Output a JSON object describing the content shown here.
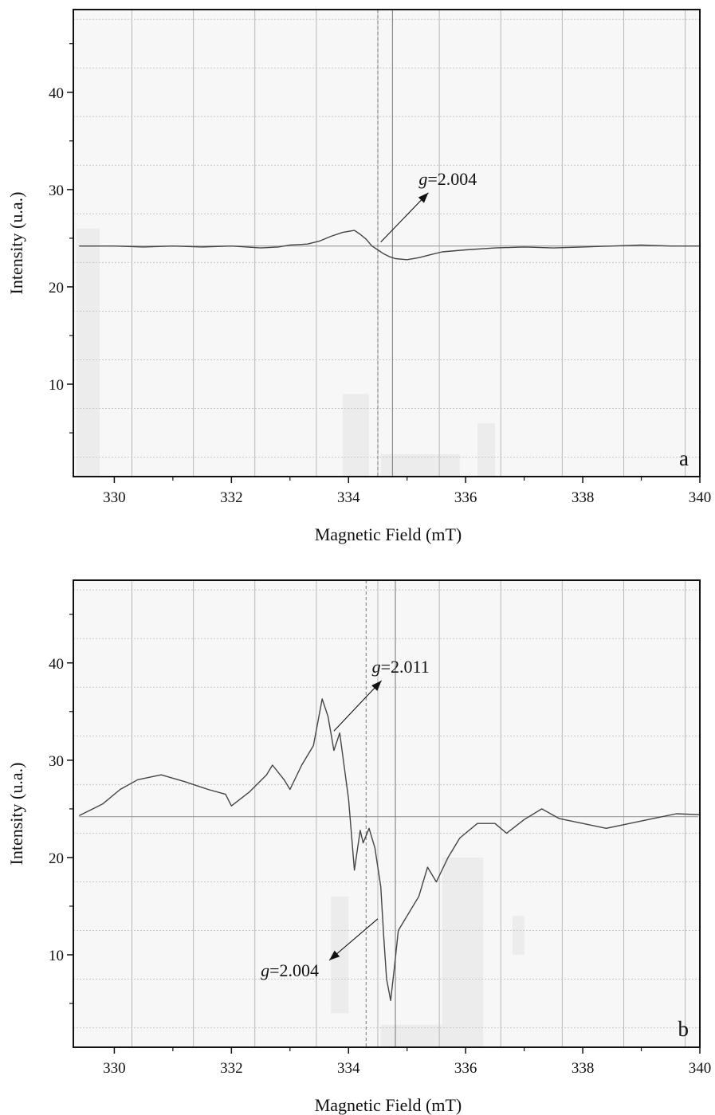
{
  "colors": {
    "plot_background": "#f7f7f7",
    "scan_speckle": "#e8e8e8",
    "grid_major": "#b8b8b8",
    "grid_minor": "#c8c8c8",
    "trace": "#444444",
    "baseline": "#9a9a9a",
    "marker_line": "#777777",
    "axis": "#111111"
  },
  "chart_data": [
    {
      "id": "a",
      "type": "line",
      "panel_label": "a",
      "xlabel": "Magnetic Field (mT)",
      "ylabel": "Intensity (u.a.)",
      "xlim": [
        329.3,
        340.0
      ],
      "ylim": [
        0.5,
        48.5
      ],
      "x_ticks": [
        330,
        332,
        334,
        336,
        338,
        340
      ],
      "x_tick_labels": [
        "330",
        "332",
        "334",
        "336",
        "338",
        "340"
      ],
      "y_ticks": [
        10,
        20,
        30,
        40
      ],
      "y_tick_labels": [
        "10",
        "20",
        "30",
        "40"
      ],
      "grid": true,
      "baseline_y": 24.2,
      "marker_lines": [
        {
          "x": 334.5,
          "style": "dashed"
        },
        {
          "x": 334.75,
          "style": "solid"
        }
      ],
      "series": [
        {
          "x": [
            329.4,
            330.0,
            330.5,
            331.0,
            331.5,
            332.0,
            332.5,
            332.8,
            333.0,
            333.3,
            333.5,
            333.7,
            333.9,
            334.1,
            334.2,
            334.3,
            334.4,
            334.5,
            334.6,
            334.7,
            334.8,
            335.0,
            335.2,
            335.4,
            335.6,
            336.0,
            336.5,
            337.0,
            337.5,
            338.0,
            338.5,
            339.0,
            339.5,
            340.0
          ],
          "y": [
            24.2,
            24.2,
            24.1,
            24.2,
            24.1,
            24.2,
            24.0,
            24.1,
            24.3,
            24.4,
            24.7,
            25.2,
            25.6,
            25.8,
            25.4,
            24.9,
            24.2,
            23.8,
            23.4,
            23.1,
            22.9,
            22.8,
            23.0,
            23.3,
            23.6,
            23.8,
            24.0,
            24.1,
            24.0,
            24.1,
            24.2,
            24.3,
            24.2,
            24.2
          ]
        }
      ],
      "annotations": [
        {
          "prefix": "g",
          "text": "=2.004",
          "points_to_x": 334.55,
          "points_to_y": 24.6,
          "label_x": 335.2,
          "label_y": 30.5
        }
      ]
    },
    {
      "id": "b",
      "type": "line",
      "panel_label": "b",
      "xlabel": "Magnetic Field (mT)",
      "ylabel": "Intensity (u.a.)",
      "xlim": [
        329.3,
        340.0
      ],
      "ylim": [
        0.5,
        48.5
      ],
      "x_ticks": [
        330,
        332,
        334,
        336,
        338,
        340
      ],
      "x_tick_labels": [
        "330",
        "332",
        "334",
        "336",
        "338",
        "340"
      ],
      "y_ticks": [
        10,
        20,
        30,
        40
      ],
      "y_tick_labels": [
        "10",
        "20",
        "30",
        "40"
      ],
      "grid": true,
      "baseline_y": 24.2,
      "marker_lines": [
        {
          "x": 334.3,
          "style": "dashed"
        },
        {
          "x": 334.8,
          "style": "solid"
        }
      ],
      "series": [
        {
          "x": [
            329.4,
            329.8,
            330.1,
            330.4,
            330.8,
            331.2,
            331.6,
            331.9,
            332.0,
            332.3,
            332.6,
            332.7,
            332.9,
            333.0,
            333.2,
            333.4,
            333.55,
            333.65,
            333.75,
            333.85,
            334.0,
            334.1,
            334.2,
            334.25,
            334.35,
            334.45,
            334.55,
            334.6,
            334.65,
            334.72,
            334.78,
            334.85,
            335.0,
            335.2,
            335.35,
            335.5,
            335.7,
            335.9,
            336.2,
            336.5,
            336.7,
            337.0,
            337.3,
            337.6,
            338.0,
            338.4,
            338.8,
            339.2,
            339.6,
            340.0
          ],
          "y": [
            24.3,
            25.5,
            27.0,
            28.0,
            28.5,
            27.8,
            27.0,
            26.5,
            25.3,
            26.7,
            28.5,
            29.5,
            28.0,
            27.0,
            29.5,
            31.5,
            36.3,
            34.5,
            31.0,
            32.8,
            26.0,
            18.7,
            22.8,
            21.5,
            23.0,
            21.0,
            17.0,
            12.0,
            7.5,
            5.3,
            8.5,
            12.5,
            14.0,
            16.0,
            19.0,
            17.5,
            20.0,
            22.0,
            23.5,
            23.5,
            22.5,
            23.9,
            25.0,
            24.0,
            23.5,
            23.0,
            23.5,
            24.0,
            24.5,
            24.4
          ]
        }
      ],
      "annotations": [
        {
          "prefix": "g",
          "text": "=2.011",
          "points_to_x": 333.75,
          "points_to_y": 33.0,
          "label_x": 334.4,
          "label_y": 39.0
        },
        {
          "prefix": "g",
          "text": "=2.004",
          "points_to_x": 334.5,
          "points_to_y": 13.7,
          "label_x": 332.5,
          "label_y": 7.8
        }
      ]
    }
  ]
}
